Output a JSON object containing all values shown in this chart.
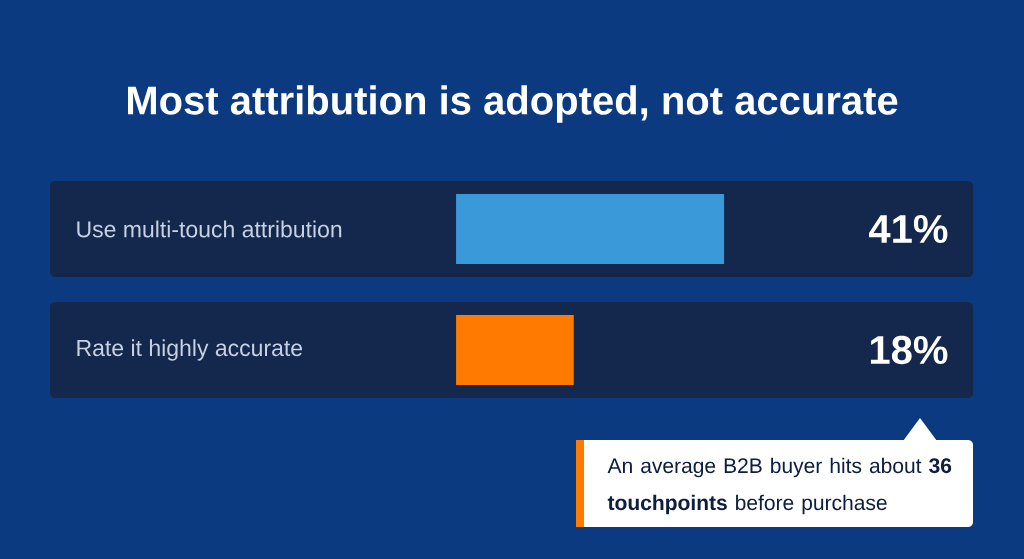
{
  "chart_data": {
    "type": "bar",
    "orientation": "horizontal",
    "title": "Most attribution is adopted, not accurate",
    "categories": [
      "Use multi-touch attribution",
      "Rate it highly accurate"
    ],
    "values": [
      41,
      18
    ],
    "colors": [
      "#3a9ad9",
      "#ff7a00"
    ],
    "value_labels": [
      "41%",
      "18%"
    ],
    "annotations": [
      "An average B2B buyer hits about **36 touchpoints** before purchase"
    ]
  }
}
